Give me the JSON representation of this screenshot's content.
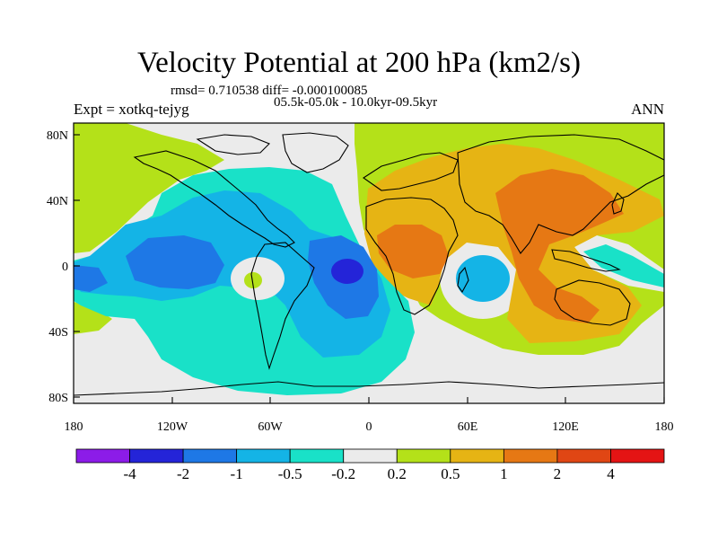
{
  "title": "Velocity Potential at 200 hPa (km2/s)",
  "rmsd_line": "rmsd= 0.710538 diff= -0.000100085",
  "experiment": "Expt = xotkq-tejyg",
  "period": "05.5k-05.0k - 10.0kyr-09.5kyr",
  "season": "ANN",
  "y_ticks": [
    "80N",
    "40N",
    "0",
    "40S",
    "80S"
  ],
  "x_ticks": [
    "180",
    "120W",
    "60W",
    "0",
    "60E",
    "120E",
    "180"
  ],
  "colorbar": {
    "colors": [
      "#8c1ce8",
      "#2424d8",
      "#1e78e6",
      "#14b4e6",
      "#19e1c8",
      "#ebebeb",
      "#b4e119",
      "#e6b414",
      "#e67814",
      "#e04614",
      "#e41414"
    ],
    "labels": [
      "-4",
      "-2",
      "-1",
      "-0.5",
      "-0.2",
      "0.2",
      "0.5",
      "1",
      "2",
      "4"
    ]
  },
  "field_colors": {
    "neutral": "#ebebeb",
    "pos_weak": "#b4e119",
    "pos_mid": "#e6b414",
    "pos_strong": "#e67814",
    "neg_weak": "#19e1c8",
    "neg_mid": "#14b4e6",
    "neg_strong": "#1e78e6",
    "neg_max": "#2424d8",
    "coast": "#000000"
  }
}
